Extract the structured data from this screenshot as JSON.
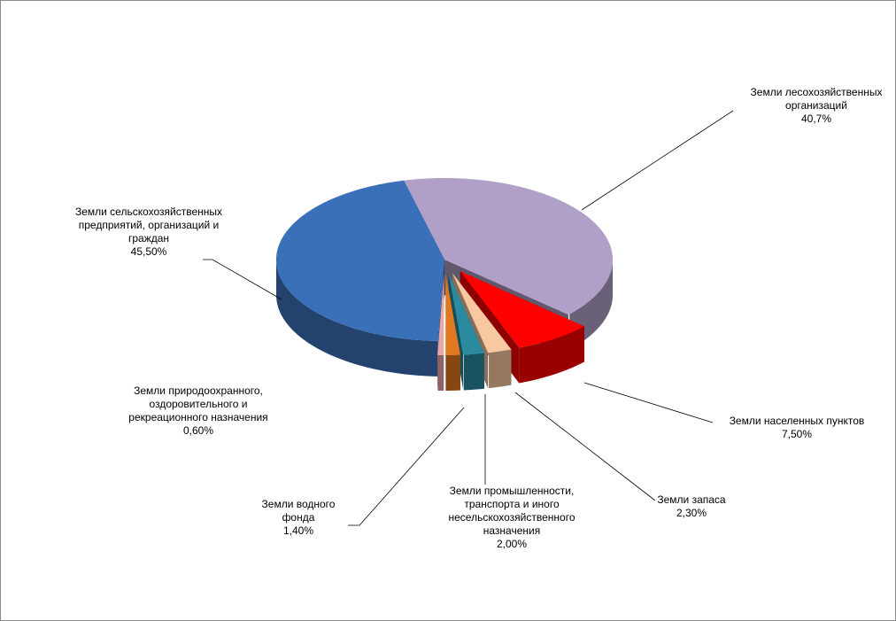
{
  "chart_data": {
    "type": "pie3d",
    "categories": [
      "Земли лесохозяйственных организаций",
      "Земли населенных пунктов",
      "Земли запаса",
      "Земли промышленности, транспорта и иного несельскохозяйственного назначения",
      "Земли водного фонда",
      "Земли природоохранного, оздоровительного и рекреационного назначения",
      "Земли сельскохозяйственных предприятий, организаций и граждан"
    ],
    "values": [
      40.7,
      7.5,
      2.3,
      2.0,
      1.4,
      0.6,
      45.5
    ],
    "value_labels": [
      "40,7%",
      "7,50%",
      "2,30%",
      "2,00%",
      "1,40%",
      "0,60%",
      "45,50%"
    ],
    "colors": [
      "#b0a0c8",
      "#ff0000",
      "#f8c8a0",
      "#2a8aa0",
      "#e07820",
      "#e8a8a8",
      "#3a70b8"
    ]
  }
}
